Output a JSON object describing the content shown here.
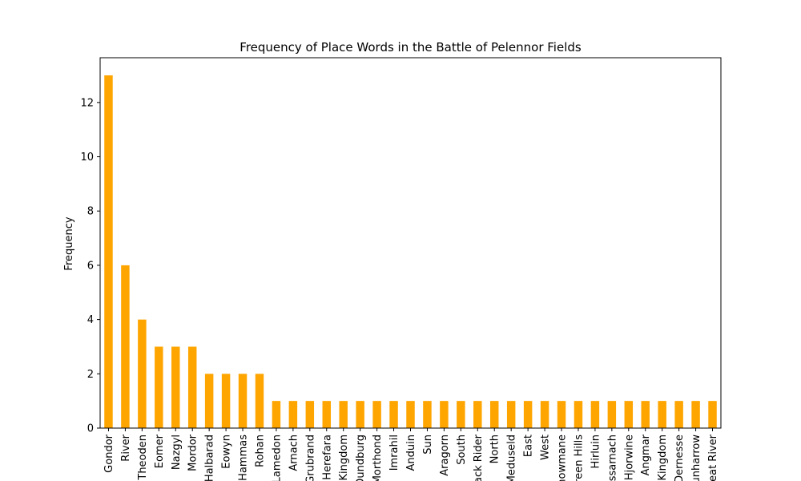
{
  "chart_data": {
    "type": "bar",
    "title": "Frequency of Place Words in the Battle of Pelennor Fields",
    "xlabel": "",
    "ylabel": "Frequency",
    "bar_color": "#ffa500",
    "ylim": [
      0,
      13.65
    ],
    "yticks": [
      0,
      2,
      4,
      6,
      8,
      10,
      12
    ],
    "grid": false,
    "legend": "none",
    "categories": [
      "Gondor",
      "River",
      "Theoden",
      "Eomer",
      "Nazgyl",
      "Mordor",
      "Halbarad",
      "Eowyn",
      "Hammas",
      "Rohan",
      "Lamedon",
      "Arnach",
      "Grubrand",
      "Herefara",
      "Kingdom",
      "Dundburg",
      "Morthond",
      "Imrahil",
      "Anduin",
      "Sun",
      "Aragorn",
      "South",
      "Black Rider",
      "North",
      "Meduseld",
      "East",
      "West",
      "Snowmane",
      "Green Hills",
      "Hirluin",
      "Lossarnach",
      "Hjorwine",
      "Angmar",
      "Kingdom",
      "Dernesse",
      "Dunharrow",
      "Great River"
    ],
    "values": [
      13,
      6,
      4,
      3,
      3,
      3,
      2,
      2,
      2,
      2,
      1,
      1,
      1,
      1,
      1,
      1,
      1,
      1,
      1,
      1,
      1,
      1,
      1,
      1,
      1,
      1,
      1,
      1,
      1,
      1,
      1,
      1,
      1,
      1,
      1,
      1,
      1
    ]
  }
}
